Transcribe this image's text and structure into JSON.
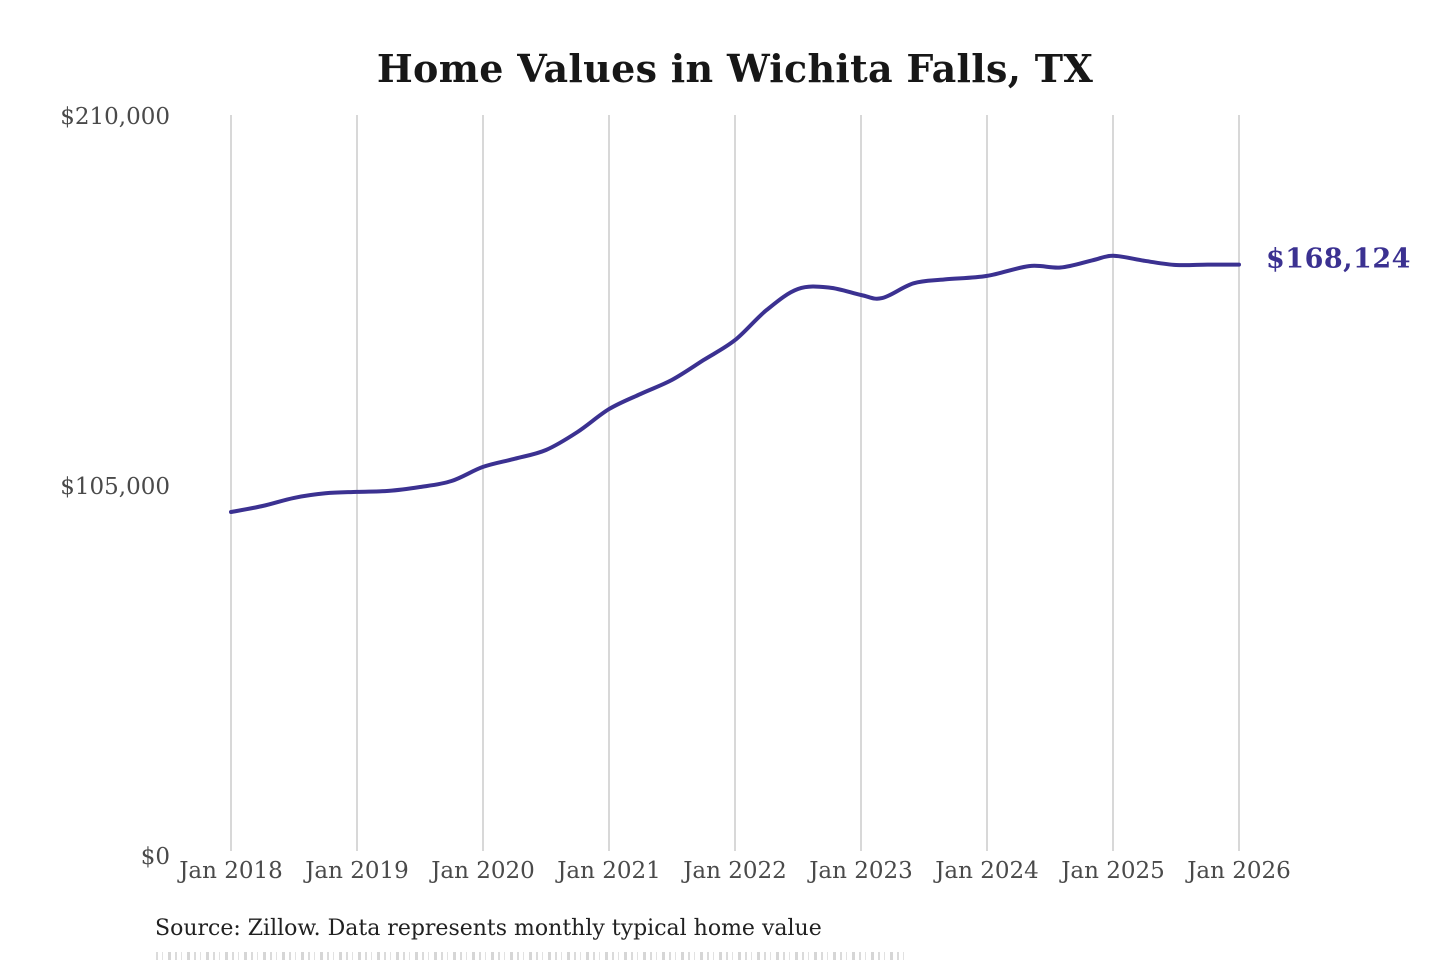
{
  "title": "Home Values in Wichita Falls, TX",
  "end_label": "$168,124",
  "source_note": "Source: Zillow. Data represents monthly typical home value",
  "colors": {
    "line": "#3b3191",
    "end_label": "#3b3191",
    "grid": "#cccccc",
    "title": "#171717",
    "axis_label": "#4a4a4a",
    "source": "#212121",
    "background": "#ffffff"
  },
  "chart_data": {
    "type": "line",
    "title": "Home Values in Wichita Falls, TX",
    "xlabel": "",
    "ylabel": "",
    "ylim": [
      0,
      210000
    ],
    "grid": "vertical-only",
    "legend": "none",
    "x": [
      "2018-01",
      "2018-04",
      "2018-07",
      "2018-10",
      "2019-01",
      "2019-04",
      "2019-07",
      "2019-10",
      "2020-01",
      "2020-04",
      "2020-07",
      "2020-10",
      "2021-01",
      "2021-04",
      "2021-07",
      "2021-10",
      "2022-01",
      "2022-04",
      "2022-07",
      "2022-10",
      "2023-01",
      "2023-03",
      "2023-06",
      "2023-09",
      "2024-01",
      "2024-05",
      "2024-08",
      "2024-11",
      "2025-01",
      "2025-04",
      "2025-07",
      "2025-10",
      "2026-01"
    ],
    "values": [
      97900,
      99600,
      101900,
      103200,
      103600,
      103900,
      105000,
      106700,
      110700,
      113000,
      115500,
      120600,
      127100,
      131400,
      135400,
      141000,
      146700,
      155200,
      161200,
      161600,
      159500,
      158600,
      162800,
      163900,
      164900,
      167700,
      167300,
      169300,
      170600,
      169200,
      168000,
      168100,
      168124
    ],
    "x_ticks": [
      {
        "label": "Jan 2018",
        "month": "2018-01"
      },
      {
        "label": "Jan 2019",
        "month": "2019-01"
      },
      {
        "label": "Jan 2020",
        "month": "2020-01"
      },
      {
        "label": "Jan 2021",
        "month": "2021-01"
      },
      {
        "label": "Jan 2022",
        "month": "2022-01"
      },
      {
        "label": "Jan 2023",
        "month": "2023-01"
      },
      {
        "label": "Jan 2024",
        "month": "2024-01"
      },
      {
        "label": "Jan 2025",
        "month": "2025-01"
      },
      {
        "label": "Jan 2026",
        "month": "2026-01"
      }
    ],
    "y_ticks": [
      {
        "label": "$0",
        "value": 0
      },
      {
        "label": "$105,000",
        "value": 105000
      },
      {
        "label": "$210,000",
        "value": 210000
      }
    ],
    "latest_value": 168124,
    "latest_value_label": "$168,124"
  }
}
